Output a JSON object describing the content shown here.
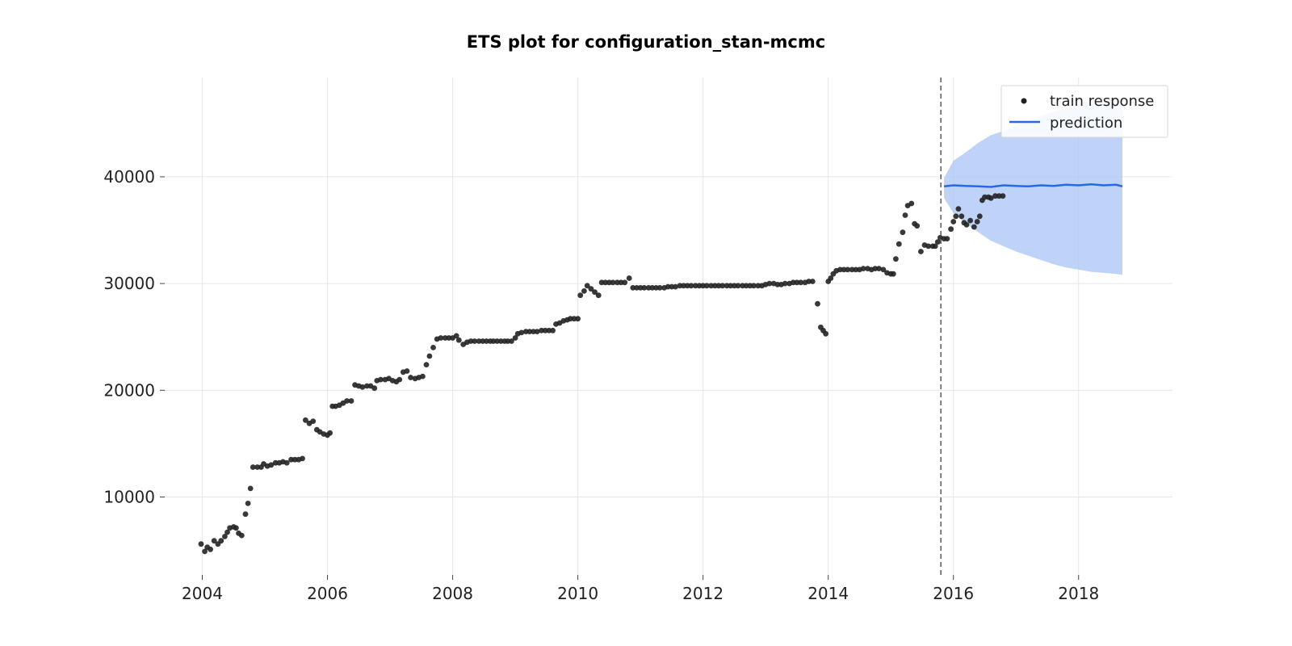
{
  "chart_data": {
    "type": "scatter",
    "title": "ETS plot for configuration_stan-mcmc",
    "xlabel": "",
    "ylabel": "",
    "xlim": [
      2003.4,
      2019.5
    ],
    "ylim": [
      2700,
      49300
    ],
    "grid": true,
    "legend_position": "top-right",
    "x_ticks": [
      2004,
      2006,
      2008,
      2010,
      2012,
      2014,
      2016,
      2018
    ],
    "y_ticks": [
      10000,
      20000,
      30000,
      40000
    ],
    "x_tick_labels": [
      "2004",
      "2006",
      "2008",
      "2010",
      "2012",
      "2014",
      "2016",
      "2018"
    ],
    "y_tick_labels": [
      "10000",
      "20000",
      "30000",
      "40000"
    ],
    "vline_x": 2015.8,
    "colors": {
      "train": "#222222",
      "prediction": "#2569e6",
      "band": "#a9c4f5",
      "grid": "#e6e6e6",
      "vline": "#666666"
    },
    "legend": [
      {
        "label": "train response",
        "kind": "scatter"
      },
      {
        "label": "prediction",
        "kind": "line"
      }
    ],
    "series": [
      {
        "name": "train response",
        "kind": "scatter",
        "points": [
          [
            2003.98,
            5600
          ],
          [
            2004.04,
            4900
          ],
          [
            2004.08,
            5300
          ],
          [
            2004.13,
            5100
          ],
          [
            2004.19,
            5900
          ],
          [
            2004.25,
            5600
          ],
          [
            2004.3,
            5900
          ],
          [
            2004.36,
            6300
          ],
          [
            2004.4,
            6700
          ],
          [
            2004.44,
            7100
          ],
          [
            2004.5,
            7200
          ],
          [
            2004.54,
            7100
          ],
          [
            2004.58,
            6600
          ],
          [
            2004.63,
            6400
          ],
          [
            2004.69,
            8400
          ],
          [
            2004.73,
            9400
          ],
          [
            2004.77,
            10800
          ],
          [
            2004.81,
            12800
          ],
          [
            2004.88,
            12800
          ],
          [
            2004.94,
            12800
          ],
          [
            2004.98,
            13100
          ],
          [
            2005.04,
            12900
          ],
          [
            2005.1,
            13000
          ],
          [
            2005.17,
            13200
          ],
          [
            2005.23,
            13200
          ],
          [
            2005.29,
            13300
          ],
          [
            2005.35,
            13200
          ],
          [
            2005.42,
            13500
          ],
          [
            2005.48,
            13500
          ],
          [
            2005.54,
            13500
          ],
          [
            2005.6,
            13600
          ],
          [
            2005.65,
            17200
          ],
          [
            2005.71,
            16900
          ],
          [
            2005.77,
            17100
          ],
          [
            2005.83,
            16300
          ],
          [
            2005.88,
            16100
          ],
          [
            2005.94,
            15900
          ],
          [
            2006.0,
            15800
          ],
          [
            2006.04,
            16000
          ],
          [
            2006.08,
            18500
          ],
          [
            2006.13,
            18500
          ],
          [
            2006.19,
            18600
          ],
          [
            2006.25,
            18800
          ],
          [
            2006.31,
            19000
          ],
          [
            2006.38,
            19000
          ],
          [
            2006.44,
            20500
          ],
          [
            2006.5,
            20400
          ],
          [
            2006.56,
            20300
          ],
          [
            2006.63,
            20400
          ],
          [
            2006.69,
            20400
          ],
          [
            2006.75,
            20200
          ],
          [
            2006.79,
            20900
          ],
          [
            2006.85,
            21000
          ],
          [
            2006.92,
            21000
          ],
          [
            2006.98,
            21100
          ],
          [
            2007.04,
            20900
          ],
          [
            2007.1,
            20800
          ],
          [
            2007.15,
            21000
          ],
          [
            2007.21,
            21700
          ],
          [
            2007.27,
            21800
          ],
          [
            2007.33,
            21200
          ],
          [
            2007.4,
            21100
          ],
          [
            2007.46,
            21200
          ],
          [
            2007.52,
            21300
          ],
          [
            2007.58,
            22400
          ],
          [
            2007.63,
            23200
          ],
          [
            2007.69,
            24000
          ],
          [
            2007.75,
            24800
          ],
          [
            2007.81,
            24900
          ],
          [
            2007.88,
            24900
          ],
          [
            2007.94,
            24900
          ],
          [
            2008.0,
            24900
          ],
          [
            2008.06,
            25100
          ],
          [
            2008.1,
            24700
          ],
          [
            2008.17,
            24300
          ],
          [
            2008.23,
            24500
          ],
          [
            2008.29,
            24600
          ],
          [
            2008.35,
            24600
          ],
          [
            2008.42,
            24600
          ],
          [
            2008.48,
            24600
          ],
          [
            2008.54,
            24600
          ],
          [
            2008.6,
            24600
          ],
          [
            2008.65,
            24600
          ],
          [
            2008.71,
            24600
          ],
          [
            2008.77,
            24600
          ],
          [
            2008.83,
            24600
          ],
          [
            2008.88,
            24600
          ],
          [
            2008.94,
            24600
          ],
          [
            2009.0,
            24900
          ],
          [
            2009.04,
            25300
          ],
          [
            2009.1,
            25400
          ],
          [
            2009.17,
            25500
          ],
          [
            2009.23,
            25500
          ],
          [
            2009.29,
            25500
          ],
          [
            2009.35,
            25500
          ],
          [
            2009.42,
            25600
          ],
          [
            2009.48,
            25600
          ],
          [
            2009.54,
            25600
          ],
          [
            2009.6,
            25600
          ],
          [
            2009.65,
            26200
          ],
          [
            2009.71,
            26300
          ],
          [
            2009.77,
            26500
          ],
          [
            2009.83,
            26600
          ],
          [
            2009.88,
            26700
          ],
          [
            2009.94,
            26700
          ],
          [
            2010.0,
            26700
          ],
          [
            2010.04,
            28900
          ],
          [
            2010.1,
            29300
          ],
          [
            2010.15,
            29800
          ],
          [
            2010.21,
            29500
          ],
          [
            2010.27,
            29200
          ],
          [
            2010.33,
            28900
          ],
          [
            2010.38,
            30100
          ],
          [
            2010.44,
            30100
          ],
          [
            2010.5,
            30100
          ],
          [
            2010.56,
            30100
          ],
          [
            2010.63,
            30100
          ],
          [
            2010.69,
            30100
          ],
          [
            2010.75,
            30100
          ],
          [
            2010.82,
            30500
          ],
          [
            2010.88,
            29600
          ],
          [
            2010.94,
            29600
          ],
          [
            2011.0,
            29600
          ],
          [
            2011.06,
            29600
          ],
          [
            2011.13,
            29600
          ],
          [
            2011.19,
            29600
          ],
          [
            2011.25,
            29600
          ],
          [
            2011.31,
            29600
          ],
          [
            2011.38,
            29600
          ],
          [
            2011.44,
            29700
          ],
          [
            2011.5,
            29700
          ],
          [
            2011.56,
            29700
          ],
          [
            2011.63,
            29800
          ],
          [
            2011.69,
            29800
          ],
          [
            2011.75,
            29800
          ],
          [
            2011.81,
            29800
          ],
          [
            2011.88,
            29800
          ],
          [
            2011.94,
            29800
          ],
          [
            2012.0,
            29800
          ],
          [
            2012.06,
            29800
          ],
          [
            2012.13,
            29800
          ],
          [
            2012.19,
            29800
          ],
          [
            2012.25,
            29800
          ],
          [
            2012.31,
            29800
          ],
          [
            2012.38,
            29800
          ],
          [
            2012.44,
            29800
          ],
          [
            2012.5,
            29800
          ],
          [
            2012.56,
            29800
          ],
          [
            2012.63,
            29800
          ],
          [
            2012.69,
            29800
          ],
          [
            2012.75,
            29800
          ],
          [
            2012.81,
            29800
          ],
          [
            2012.88,
            29800
          ],
          [
            2012.94,
            29800
          ],
          [
            2013.0,
            29900
          ],
          [
            2013.06,
            30000
          ],
          [
            2013.13,
            30000
          ],
          [
            2013.19,
            29900
          ],
          [
            2013.25,
            29900
          ],
          [
            2013.31,
            30000
          ],
          [
            2013.38,
            30000
          ],
          [
            2013.44,
            30100
          ],
          [
            2013.5,
            30100
          ],
          [
            2013.56,
            30100
          ],
          [
            2013.63,
            30100
          ],
          [
            2013.69,
            30200
          ],
          [
            2013.75,
            30200
          ],
          [
            2013.83,
            28100
          ],
          [
            2013.88,
            25900
          ],
          [
            2013.92,
            25600
          ],
          [
            2013.96,
            25300
          ],
          [
            2014.0,
            30200
          ],
          [
            2014.04,
            30500
          ],
          [
            2014.08,
            30900
          ],
          [
            2014.13,
            31200
          ],
          [
            2014.19,
            31300
          ],
          [
            2014.25,
            31300
          ],
          [
            2014.31,
            31300
          ],
          [
            2014.38,
            31300
          ],
          [
            2014.44,
            31300
          ],
          [
            2014.5,
            31300
          ],
          [
            2014.56,
            31400
          ],
          [
            2014.63,
            31400
          ],
          [
            2014.69,
            31300
          ],
          [
            2014.75,
            31400
          ],
          [
            2014.81,
            31400
          ],
          [
            2014.88,
            31300
          ],
          [
            2014.94,
            31000
          ],
          [
            2015.0,
            30900
          ],
          [
            2015.04,
            30900
          ],
          [
            2015.08,
            32300
          ],
          [
            2015.13,
            33700
          ],
          [
            2015.19,
            34800
          ],
          [
            2015.23,
            36400
          ],
          [
            2015.27,
            37300
          ],
          [
            2015.33,
            37500
          ],
          [
            2015.38,
            35600
          ],
          [
            2015.42,
            35400
          ],
          [
            2015.48,
            33000
          ],
          [
            2015.54,
            33600
          ],
          [
            2015.6,
            33500
          ],
          [
            2015.67,
            33500
          ],
          [
            2015.71,
            33500
          ],
          [
            2015.75,
            33900
          ],
          [
            2015.79,
            34300
          ],
          [
            2015.85,
            34200
          ],
          [
            2015.9,
            34200
          ],
          [
            2015.96,
            35100
          ],
          [
            2016.0,
            35800
          ],
          [
            2016.04,
            36300
          ],
          [
            2016.08,
            37000
          ],
          [
            2016.13,
            36300
          ],
          [
            2016.17,
            35700
          ],
          [
            2016.21,
            35500
          ],
          [
            2016.27,
            35900
          ],
          [
            2016.33,
            35300
          ],
          [
            2016.38,
            35800
          ],
          [
            2016.42,
            36300
          ],
          [
            2016.46,
            37800
          ],
          [
            2016.5,
            38100
          ],
          [
            2016.56,
            38100
          ],
          [
            2016.6,
            38000
          ],
          [
            2016.67,
            38200
          ],
          [
            2016.73,
            38200
          ],
          [
            2016.79,
            38200
          ]
        ]
      },
      {
        "name": "prediction",
        "kind": "line",
        "x": [
          2015.85,
          2016.0,
          2016.2,
          2016.4,
          2016.6,
          2016.8,
          2017.0,
          2017.2,
          2017.4,
          2017.6,
          2017.8,
          2018.0,
          2018.2,
          2018.4,
          2018.6,
          2018.7
        ],
        "values": [
          39100,
          39200,
          39150,
          39100,
          39050,
          39200,
          39150,
          39100,
          39200,
          39150,
          39250,
          39200,
          39300,
          39200,
          39250,
          39100
        ],
        "lower": [
          38000,
          36600,
          35600,
          34800,
          34000,
          33500,
          33000,
          32600,
          32200,
          31800,
          31500,
          31300,
          31100,
          31000,
          30900,
          30800
        ],
        "upper": [
          39900,
          41500,
          42300,
          43200,
          43900,
          44300,
          44800,
          45300,
          45700,
          46100,
          46400,
          46700,
          47000,
          47200,
          47300,
          47300
        ]
      }
    ]
  }
}
